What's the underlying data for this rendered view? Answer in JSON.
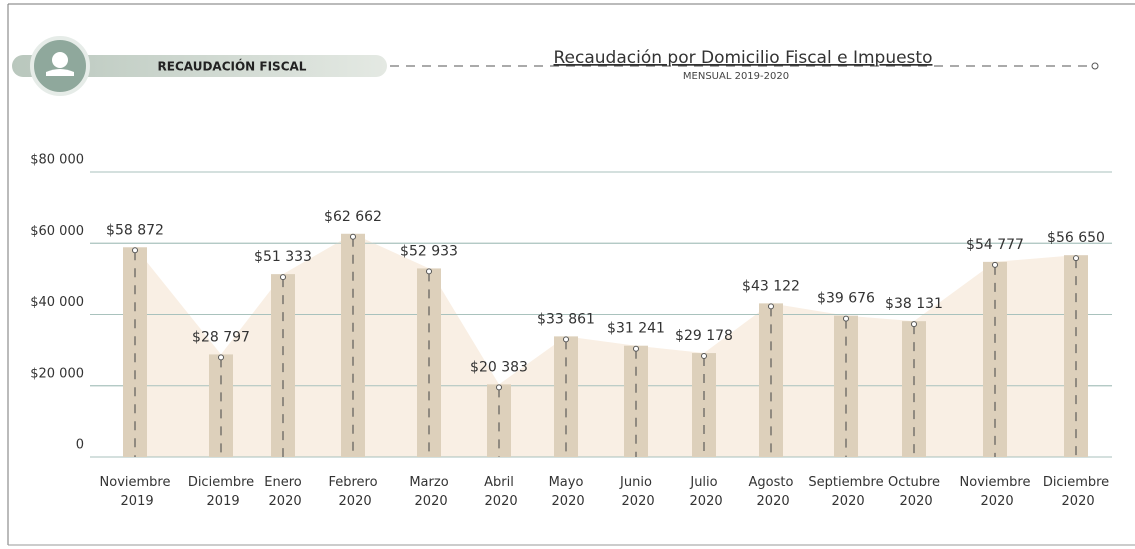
{
  "header": {
    "label": "RECAUDACIÓN FISCAL"
  },
  "chart_data": {
    "type": "bar",
    "title": "Recaudación por Domicilio Fiscal e Impuesto",
    "subtitle": "MENSUAL 2019-2020",
    "categories": [
      "Noviembre 2019",
      "Diciembre 2019",
      "Enero 2020",
      "Febrero 2020",
      "Marzo 2020",
      "Abril 2020",
      "Mayo 2020",
      "Junio 2020",
      "Julio 2020",
      "Agosto 2020",
      "Septiembre 2020",
      "Octubre 2020",
      "Noviembre 2020",
      "Diciembre 2020"
    ],
    "values": [
      58872,
      28797,
      51333,
      62662,
      52933,
      20383,
      33861,
      31241,
      29178,
      43122,
      39676,
      38131,
      54777,
      56650
    ],
    "value_labels": [
      "$58 872",
      "$28 797",
      "$51 333",
      "$62 662",
      "$52 933",
      "$20 383",
      "$33 861",
      "$31 241",
      "$29 178",
      "$43 122",
      "$39 676",
      "$38 131",
      "$54 777",
      "$56 650"
    ],
    "color": "#ddd0bb",
    "area_color": "#f9efe4",
    "ylim": [
      0,
      80000
    ],
    "yticks": [
      0,
      {
        "value": 20000,
        "label": "$20 000"
      },
      {
        "value": 40000,
        "label": "$40 000"
      },
      {
        "value": 60000,
        "label": "$60 000"
      },
      {
        "value": 80000,
        "label": "$80 000"
      }
    ],
    "grid": true
  }
}
